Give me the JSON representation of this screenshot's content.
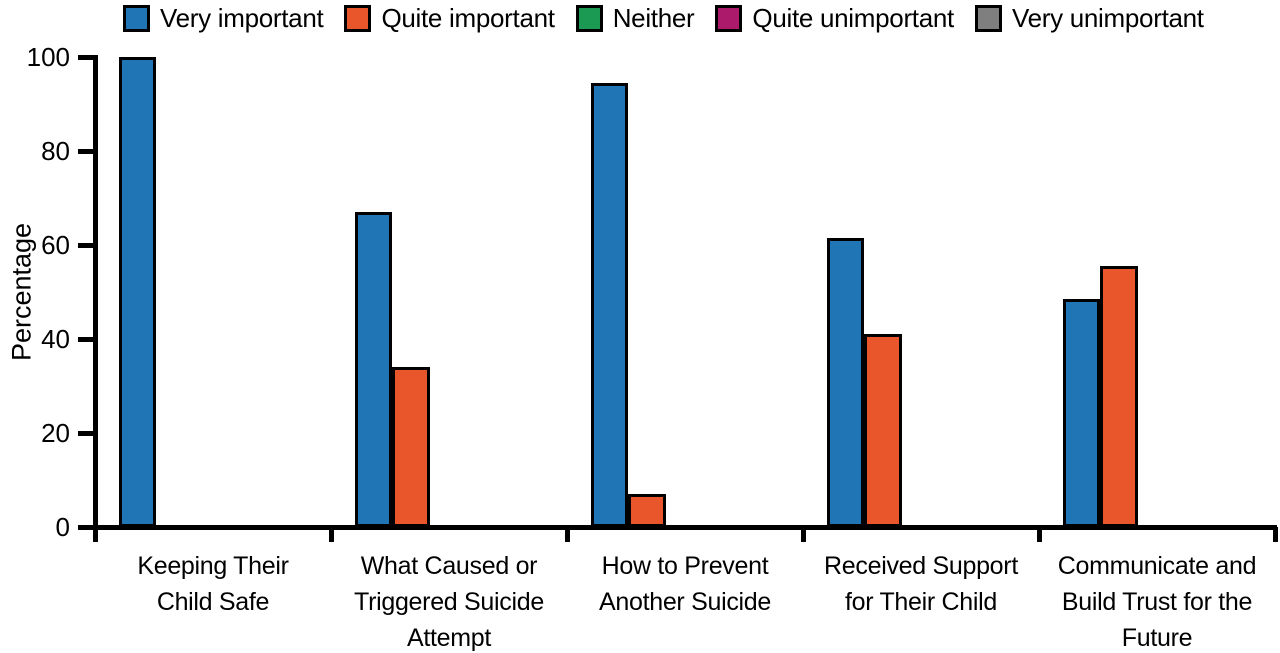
{
  "page": {
    "background": "#ffffff",
    "text_color": "#000000"
  },
  "chart_data": {
    "type": "bar",
    "title": "",
    "xlabel": "",
    "ylabel": "Percentage",
    "ylim": [
      0,
      100
    ],
    "yticks": [
      0,
      20,
      40,
      60,
      80,
      100
    ],
    "grid": false,
    "legend_position": "top",
    "axis_color": "#000000",
    "categories": [
      "Keeping Their\nChild Safe",
      "What Caused or\nTriggered Suicide\nAttempt",
      "How to Prevent\nAnother Suicide",
      "Received Support\nfor Their Child",
      "Communicate and\nBuild Trust for the\nFuture"
    ],
    "series": [
      {
        "name": "Very important",
        "color": "#2076b5",
        "values": [
          100,
          67,
          94.5,
          61.5,
          48.5
        ]
      },
      {
        "name": "Quite important",
        "color": "#ea562c",
        "values": [
          0,
          34,
          7,
          41,
          55.5
        ]
      },
      {
        "name": "Neither",
        "color": "#1a9a52",
        "values": [
          0,
          0,
          0,
          0,
          0
        ]
      },
      {
        "name": "Quite unimportant",
        "color": "#ac1a6c",
        "values": [
          0,
          0,
          0,
          0,
          0
        ]
      },
      {
        "name": "Very unimportant",
        "color": "#7f7f7f",
        "values": [
          0,
          0,
          0,
          0,
          0
        ]
      }
    ]
  }
}
